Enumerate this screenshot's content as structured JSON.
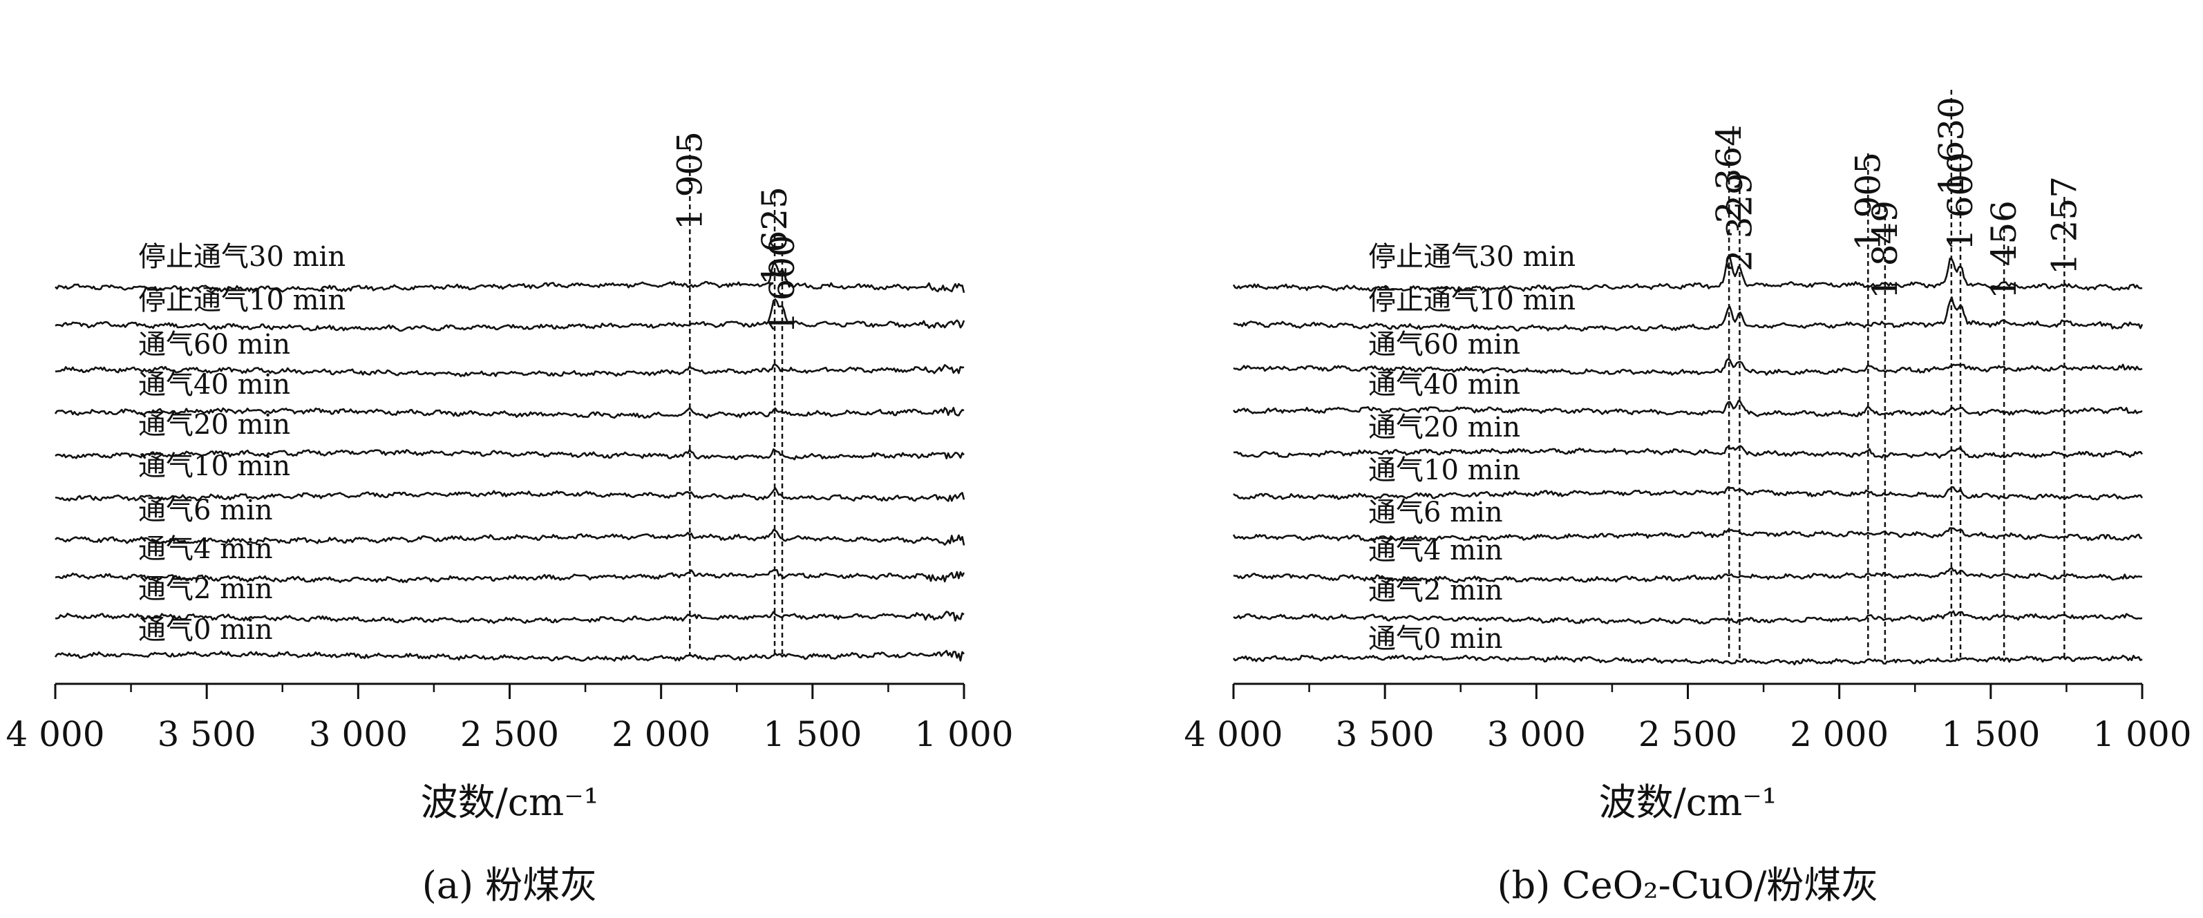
{
  "colors": {
    "line": "#111111",
    "background": "#ffffff"
  },
  "chart_data": [
    {
      "type": "line",
      "caption": "(a) 粉煤灰",
      "xlabel": "波数/cm⁻¹",
      "xlim": [
        4000,
        1000
      ],
      "x_ticks": [
        4000,
        3500,
        3000,
        2500,
        2000,
        1500,
        1000
      ],
      "x_tick_labels": [
        "4 000",
        "3 500",
        "3 000",
        "2 500",
        "2 000",
        "1 500",
        "1 000"
      ],
      "reference_lines": [
        {
          "x": 1905,
          "label": "1 905"
        },
        {
          "x": 1625,
          "label": "1 625"
        },
        {
          "x": 1600,
          "label": "1 600"
        }
      ],
      "series": [
        {
          "name": "停止通气30 min",
          "peaks": [
            {
              "x": 1625,
              "height": 1.0
            },
            {
              "x": 1600,
              "height": 0.7
            }
          ]
        },
        {
          "name": "停止通气10 min",
          "peaks": [
            {
              "x": 1625,
              "height": 1.25
            },
            {
              "x": 1600,
              "height": 0.8
            }
          ]
        },
        {
          "name": "通气60 min",
          "peaks": [
            {
              "x": 1905,
              "height": 0.25
            },
            {
              "x": 1625,
              "height": 0.3
            }
          ]
        },
        {
          "name": "通气40 min",
          "peaks": [
            {
              "x": 1905,
              "height": 0.25
            },
            {
              "x": 1625,
              "height": 0.3
            }
          ]
        },
        {
          "name": "通气20 min",
          "peaks": [
            {
              "x": 1905,
              "height": 0.2
            },
            {
              "x": 1625,
              "height": 0.3
            }
          ]
        },
        {
          "name": "通气10 min",
          "peaks": [
            {
              "x": 1905,
              "height": 0.2
            },
            {
              "x": 1625,
              "height": 0.3
            }
          ]
        },
        {
          "name": "通气6 min",
          "peaks": [
            {
              "x": 1905,
              "height": 0.2
            },
            {
              "x": 1625,
              "height": 0.3
            }
          ]
        },
        {
          "name": "通气4 min",
          "peaks": [
            {
              "x": 1905,
              "height": 0.25
            },
            {
              "x": 1625,
              "height": 0.3
            }
          ]
        },
        {
          "name": "通气2 min",
          "peaks": [
            {
              "x": 1905,
              "height": 0.15
            },
            {
              "x": 1625,
              "height": 0.25
            }
          ]
        },
        {
          "name": "通气0 min",
          "peaks": [
            {
              "x": 1905,
              "height": 0.1
            },
            {
              "x": 1625,
              "height": 0.15
            }
          ]
        }
      ]
    },
    {
      "type": "line",
      "caption": "(b) CeO₂-CuO/粉煤灰",
      "xlabel": "波数/cm⁻¹",
      "xlim": [
        4000,
        1000
      ],
      "x_ticks": [
        4000,
        3500,
        3000,
        2500,
        2000,
        1500,
        1000
      ],
      "x_tick_labels": [
        "4 000",
        "3 500",
        "3 000",
        "2 500",
        "2 000",
        "1 500",
        "1 000"
      ],
      "reference_lines": [
        {
          "x": 2364,
          "label": "2 364"
        },
        {
          "x": 2329,
          "label": "2 329"
        },
        {
          "x": 1905,
          "label": "1 905"
        },
        {
          "x": 1849,
          "label": "1 849"
        },
        {
          "x": 1630,
          "label": "1 630"
        },
        {
          "x": 1600,
          "label": "1 600"
        },
        {
          "x": 1456,
          "label": "1 456"
        },
        {
          "x": 1257,
          "label": "1 257"
        }
      ],
      "series": [
        {
          "name": "停止通气30 min",
          "peaks": [
            {
              "x": 2364,
              "height": 1.3
            },
            {
              "x": 2329,
              "height": 0.9
            },
            {
              "x": 1630,
              "height": 1.3
            },
            {
              "x": 1600,
              "height": 1.0
            },
            {
              "x": 1456,
              "height": 0.15
            },
            {
              "x": 1257,
              "height": 0.1
            }
          ]
        },
        {
          "name": "停止通气10 min",
          "peaks": [
            {
              "x": 2364,
              "height": 0.9
            },
            {
              "x": 2329,
              "height": 0.7
            },
            {
              "x": 1630,
              "height": 1.3
            },
            {
              "x": 1600,
              "height": 1.0
            },
            {
              "x": 1456,
              "height": 0.1
            },
            {
              "x": 1257,
              "height": 0.15
            }
          ]
        },
        {
          "name": "通气60 min",
          "peaks": [
            {
              "x": 2364,
              "height": 0.75
            },
            {
              "x": 2329,
              "height": 0.6
            },
            {
              "x": 1905,
              "height": 0.2
            },
            {
              "x": 1630,
              "height": 0.3
            },
            {
              "x": 1600,
              "height": 0.25
            }
          ]
        },
        {
          "name": "通气40 min",
          "peaks": [
            {
              "x": 2364,
              "height": 0.7
            },
            {
              "x": 2329,
              "height": 0.55
            },
            {
              "x": 1905,
              "height": 0.2
            },
            {
              "x": 1630,
              "height": 0.3
            },
            {
              "x": 1600,
              "height": 0.25
            }
          ]
        },
        {
          "name": "通气20 min",
          "peaks": [
            {
              "x": 2364,
              "height": 0.3
            },
            {
              "x": 2329,
              "height": 0.25
            },
            {
              "x": 1905,
              "height": 0.2
            },
            {
              "x": 1630,
              "height": 0.3
            },
            {
              "x": 1600,
              "height": 0.25
            }
          ]
        },
        {
          "name": "通气10 min",
          "peaks": [
            {
              "x": 2364,
              "height": 0.25
            },
            {
              "x": 2329,
              "height": 0.2
            },
            {
              "x": 1905,
              "height": 0.2
            },
            {
              "x": 1630,
              "height": 0.35
            },
            {
              "x": 1600,
              "height": 0.25
            }
          ]
        },
        {
          "name": "通气6 min",
          "peaks": [
            {
              "x": 2364,
              "height": 0.2
            },
            {
              "x": 2329,
              "height": 0.15
            },
            {
              "x": 1905,
              "height": 0.15
            },
            {
              "x": 1630,
              "height": 0.35
            },
            {
              "x": 1600,
              "height": 0.25
            }
          ]
        },
        {
          "name": "通气4 min",
          "peaks": [
            {
              "x": 2364,
              "height": 0.15
            },
            {
              "x": 2329,
              "height": 0.1
            },
            {
              "x": 1905,
              "height": 0.15
            },
            {
              "x": 1630,
              "height": 0.35
            },
            {
              "x": 1600,
              "height": 0.25
            }
          ]
        },
        {
          "name": "通气2 min",
          "peaks": [
            {
              "x": 2364,
              "height": 0.1
            },
            {
              "x": 1905,
              "height": 0.15
            },
            {
              "x": 1630,
              "height": 0.35
            },
            {
              "x": 1600,
              "height": 0.25
            }
          ]
        },
        {
          "name": "通气0 min",
          "peaks": [
            {
              "x": 2364,
              "height": 0.05
            }
          ]
        }
      ]
    }
  ]
}
